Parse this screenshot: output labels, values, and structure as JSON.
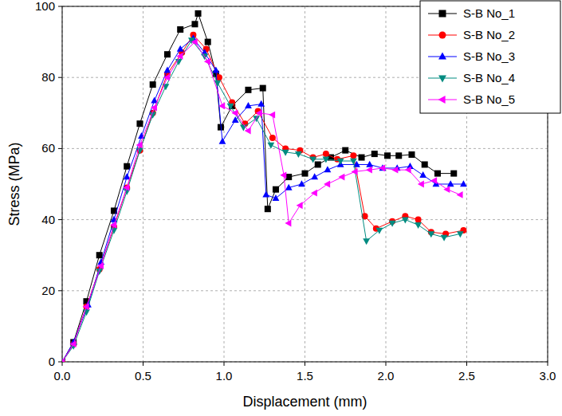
{
  "chart_data": {
    "type": "line",
    "x_label": "Displacement (mm)",
    "y_label": "Stress (MPa)",
    "xlim": [
      0,
      3
    ],
    "ylim": [
      0,
      100
    ],
    "xticks": [
      {
        "value": 0,
        "label": "0.0"
      },
      0.5,
      {
        "value": 1,
        "label": "1.0"
      },
      1.5,
      {
        "value": 2,
        "label": "2.0"
      },
      2.5,
      {
        "value": 3,
        "label": "3.0"
      }
    ],
    "yticks": [
      0,
      20,
      40,
      60,
      80,
      100
    ],
    "grid": true,
    "legend": "top-right",
    "series": [
      {
        "name": "S-B No_1",
        "color": "#000000",
        "marker": "square",
        "x": [
          0,
          0.07,
          0.15,
          0.23,
          0.32,
          0.4,
          0.48,
          0.56,
          0.65,
          0.73,
          0.82,
          0.84,
          0.9,
          0.95,
          0.98,
          1.05,
          1.15,
          1.24,
          1.27,
          1.32,
          1.4,
          1.5,
          1.58,
          1.66,
          1.75,
          1.85,
          1.93,
          2.01,
          2.08,
          2.16,
          2.24,
          2.32,
          2.42
        ],
        "values": [
          0,
          5.5,
          17,
          30,
          42.5,
          55,
          67,
          78,
          86.5,
          93.5,
          95,
          98,
          90,
          81,
          66,
          72,
          76.5,
          77,
          43,
          48.5,
          52,
          53,
          55.5,
          57.5,
          59.5,
          57.5,
          58.5,
          58,
          58,
          58.3,
          55.5,
          53,
          53
        ]
      },
      {
        "name": "S-B No_2",
        "color": "#ff0000",
        "marker": "circle",
        "x": [
          0,
          0.07,
          0.15,
          0.23,
          0.32,
          0.4,
          0.48,
          0.56,
          0.65,
          0.74,
          0.81,
          0.89,
          0.97,
          1.05,
          1.13,
          1.21,
          1.3,
          1.38,
          1.47,
          1.55,
          1.63,
          1.7,
          1.8,
          1.87,
          1.94,
          2.04,
          2.12,
          2.2,
          2.28,
          2.37,
          2.48
        ],
        "values": [
          0,
          5,
          15.5,
          26,
          38,
          49,
          59.5,
          70,
          81,
          87,
          92,
          88,
          80,
          73,
          67,
          70.5,
          63,
          60,
          59.5,
          57.5,
          58.5,
          57,
          58,
          41,
          37.5,
          39.5,
          41,
          40,
          36.5,
          36,
          37
        ]
      },
      {
        "name": "S-B No_3",
        "color": "#0000ff",
        "marker": "triangle-up",
        "x": [
          0,
          0.07,
          0.16,
          0.24,
          0.32,
          0.4,
          0.49,
          0.57,
          0.65,
          0.73,
          0.81,
          0.88,
          0.95,
          0.99,
          1.07,
          1.15,
          1.23,
          1.26,
          1.32,
          1.4,
          1.48,
          1.56,
          1.64,
          1.72,
          1.82,
          1.9,
          1.98,
          2.07,
          2.15,
          2.23,
          2.31,
          2.4,
          2.48
        ],
        "values": [
          0,
          5.5,
          16,
          28,
          40,
          52,
          63.5,
          73.5,
          82,
          88,
          91,
          87,
          82,
          62,
          68,
          72,
          72.5,
          47,
          46,
          49,
          50,
          52,
          54,
          55.5,
          55.5,
          55.5,
          54.5,
          54.5,
          55,
          52.5,
          50,
          50,
          50
        ]
      },
      {
        "name": "S-B No_4",
        "color": "#008b80",
        "marker": "triangle-down",
        "x": [
          0,
          0.07,
          0.15,
          0.23,
          0.32,
          0.4,
          0.48,
          0.56,
          0.64,
          0.72,
          0.8,
          0.88,
          0.96,
          1.04,
          1.12,
          1.2,
          1.29,
          1.38,
          1.46,
          1.55,
          1.63,
          1.72,
          1.8,
          1.88,
          1.96,
          2.04,
          2.12,
          2.2,
          2.28,
          2.36,
          2.46
        ],
        "values": [
          0,
          4.5,
          14,
          25.5,
          37,
          48,
          59.5,
          69.5,
          77.5,
          84.5,
          90.5,
          86,
          78.5,
          72,
          66,
          68.5,
          61,
          59,
          58.5,
          57,
          57,
          56.5,
          56.5,
          34,
          37,
          39,
          40,
          38.5,
          36,
          35,
          36
        ]
      },
      {
        "name": "S-B No_5",
        "color": "#ff00ff",
        "marker": "triangle-left",
        "x": [
          0,
          0.07,
          0.15,
          0.24,
          0.32,
          0.4,
          0.48,
          0.57,
          0.65,
          0.73,
          0.82,
          0.9,
          0.99,
          1.07,
          1.15,
          1.22,
          1.3,
          1.37,
          1.4,
          1.47,
          1.56,
          1.64,
          1.73,
          1.81,
          1.9,
          1.98,
          2.06,
          2.14,
          2.22,
          2.3,
          2.38,
          2.46
        ],
        "values": [
          0,
          5,
          15.5,
          27,
          38.5,
          49,
          61,
          71.5,
          80,
          86,
          90,
          84.5,
          72,
          70,
          65,
          70,
          69.5,
          52.5,
          39,
          44,
          47.5,
          50,
          52,
          53.5,
          54,
          54.5,
          54,
          54,
          50,
          51,
          48.5,
          47
        ]
      }
    ]
  }
}
